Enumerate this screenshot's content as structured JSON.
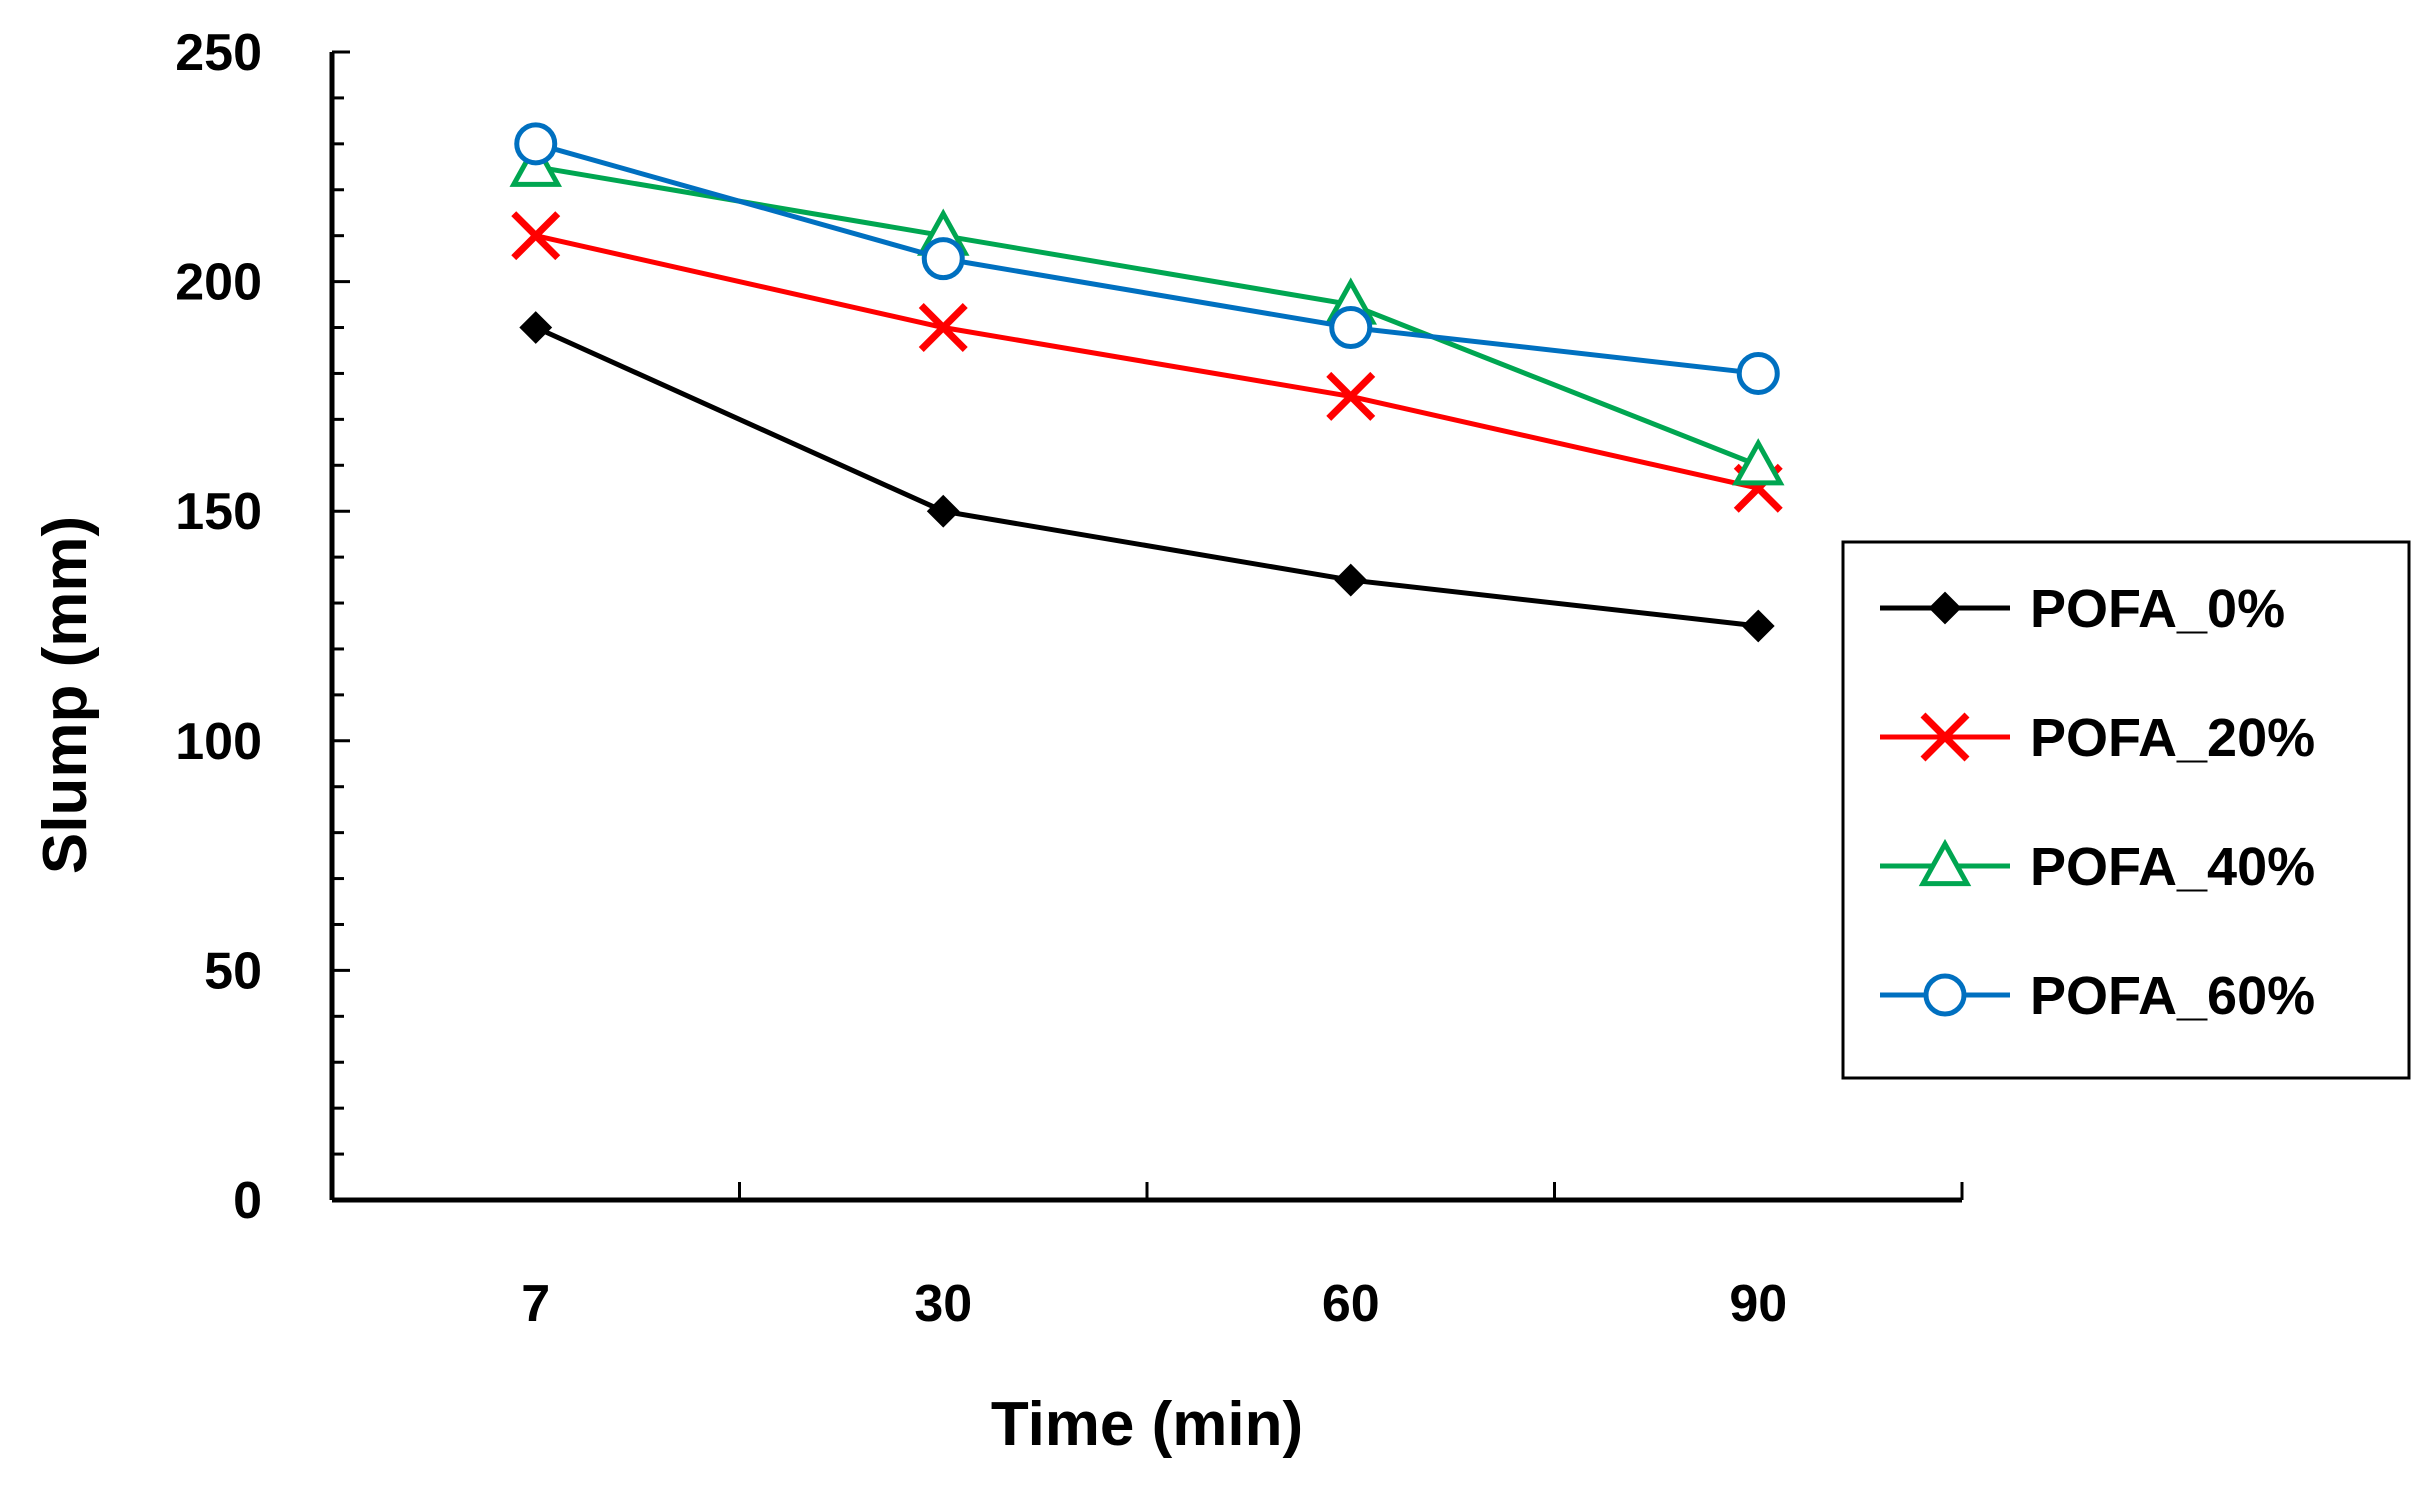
{
  "chart_data": {
    "type": "line",
    "title": "",
    "xlabel": "Time (min)",
    "ylabel": "Slump (mm)",
    "categories": [
      "7",
      "30",
      "60",
      "90"
    ],
    "ylim": [
      0,
      250
    ],
    "yticks": [
      "0",
      "50",
      "100",
      "150",
      "200",
      "250"
    ],
    "grid": false,
    "legend_position": "right",
    "series": [
      {
        "name": "POFA_0%",
        "values": [
          190,
          150,
          135,
          125
        ],
        "color": "#000000",
        "marker": "diamond"
      },
      {
        "name": "POFA_20%",
        "values": [
          210,
          190,
          175,
          155
        ],
        "color": "#ff0000",
        "marker": "x"
      },
      {
        "name": "POFA_40%",
        "values": [
          225,
          210,
          195,
          160
        ],
        "color": "#00a651",
        "marker": "triangle"
      },
      {
        "name": "POFA_60%",
        "values": [
          230,
          205,
          190,
          180
        ],
        "color": "#0070c0",
        "marker": "circle"
      }
    ]
  }
}
